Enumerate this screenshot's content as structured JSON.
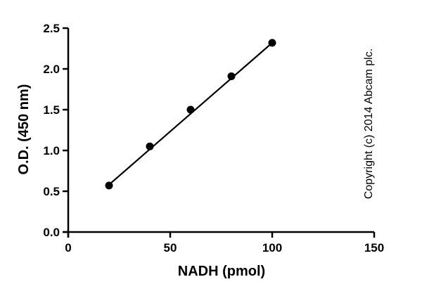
{
  "chart_data": {
    "type": "scatter",
    "title": "",
    "xlabel": "NADH (pmol)",
    "ylabel": "O.D. (450 nm)",
    "xlim": [
      0,
      150
    ],
    "ylim": [
      0.0,
      2.5
    ],
    "x_ticks": [
      "0",
      "50",
      "100",
      "150"
    ],
    "y_ticks": [
      "0.0",
      "0.5",
      "1.0",
      "1.5",
      "2.0",
      "2.5"
    ],
    "grid": false,
    "legend": "none",
    "series": [
      {
        "x": [
          20,
          40,
          60,
          80,
          100
        ],
        "y": [
          0.57,
          1.05,
          1.5,
          1.91,
          2.32
        ]
      }
    ],
    "fit_line": {
      "x": [
        20,
        100
      ],
      "y": [
        0.58,
        2.32
      ]
    },
    "annotations": [
      "Copyright (c) 2014 Abcam plc."
    ],
    "colors": {
      "line": "#000000",
      "marker": "#000000"
    }
  }
}
